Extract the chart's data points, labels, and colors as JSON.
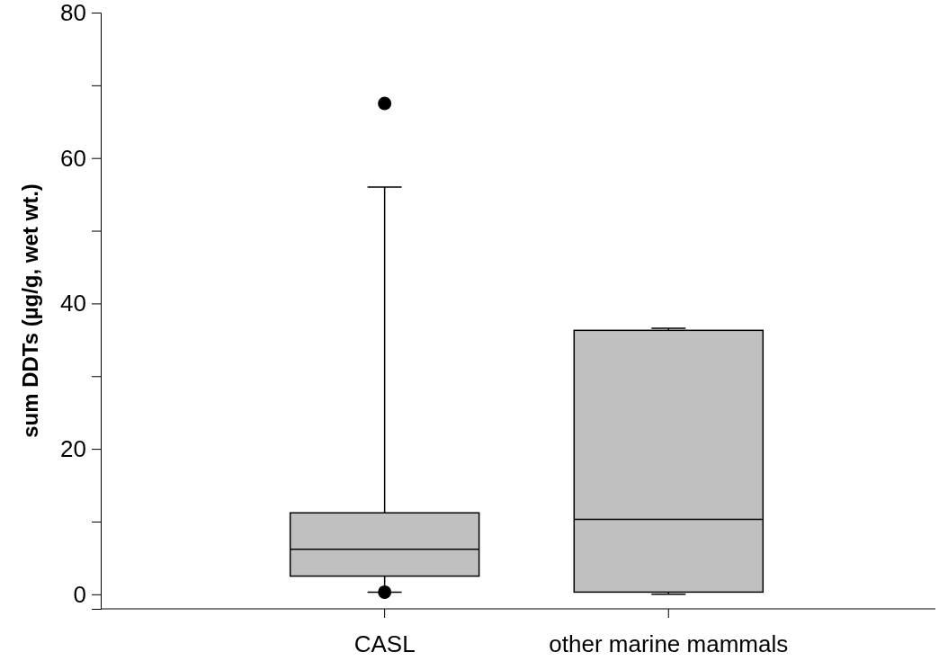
{
  "chart_data": {
    "type": "box",
    "ylabel": "sum DDTs (µg/g, wet wt.)",
    "categories": [
      "CASL",
      "other marine mammals"
    ],
    "ylim": [
      -2,
      80
    ],
    "yticks": [
      0,
      {
        "value": 10,
        "label": null
      },
      20,
      {
        "value": 30,
        "label": null
      },
      40,
      {
        "value": 50,
        "label": null
      },
      60,
      {
        "value": 70,
        "label": null
      },
      80
    ],
    "color": "#c0c0c0",
    "boxes": [
      {
        "low": 0.3,
        "q1": 2.5,
        "median": 6.2,
        "q3": 11.2,
        "high": 56,
        "outliers": [
          0.3,
          67.5
        ]
      },
      {
        "low": 0,
        "q1": 0.3,
        "median": 10.3,
        "q3": 36.3,
        "high": 36.6
      }
    ]
  }
}
